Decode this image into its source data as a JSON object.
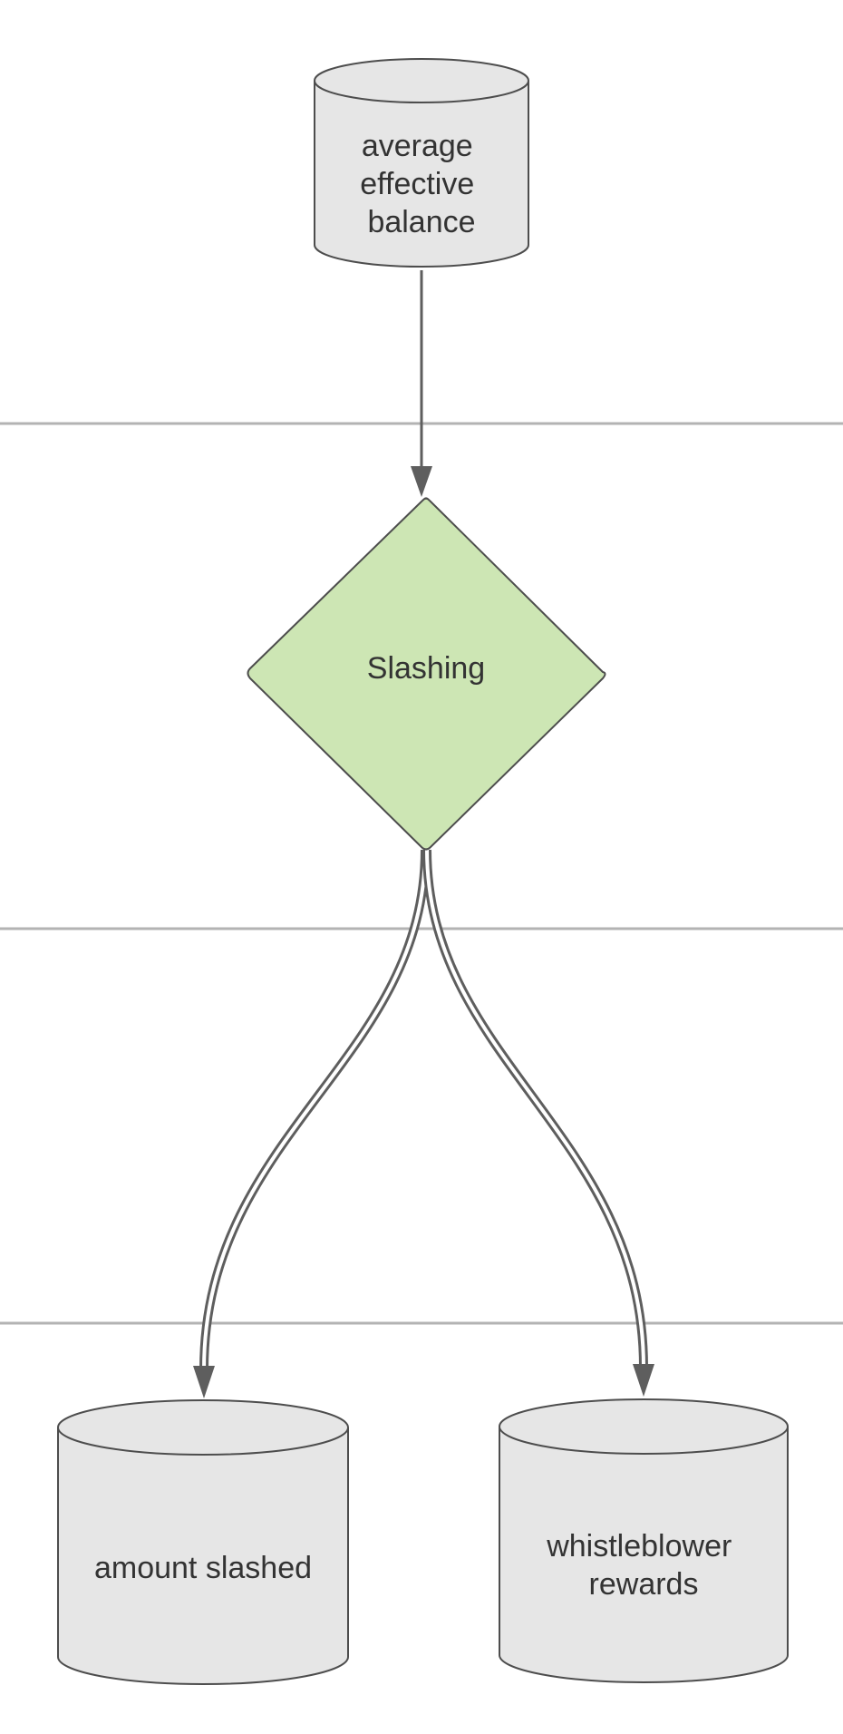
{
  "diagram": {
    "nodes": {
      "source": {
        "shape": "cylinder",
        "lines": [
          "average",
          "effective",
          "balance"
        ],
        "fill": "#e6e6e6"
      },
      "process": {
        "shape": "diamond",
        "label": "Slashing",
        "fill": "#cde6b4"
      },
      "out_left": {
        "shape": "cylinder",
        "lines": [
          "amount slashed"
        ],
        "fill": "#e6e6e6"
      },
      "out_right": {
        "shape": "cylinder",
        "lines": [
          "whistleblower",
          "rewards"
        ],
        "fill": "#e6e6e6"
      }
    },
    "edges": [
      {
        "from": "source",
        "to": "process",
        "style": "single"
      },
      {
        "from": "process",
        "to": "out_left",
        "style": "double"
      },
      {
        "from": "process",
        "to": "out_right",
        "style": "double"
      }
    ],
    "colors": {
      "stroke": "#4d4d4d",
      "edge": "#5e5e5e",
      "separator": "#b3b3b3",
      "text": "#333333"
    }
  }
}
